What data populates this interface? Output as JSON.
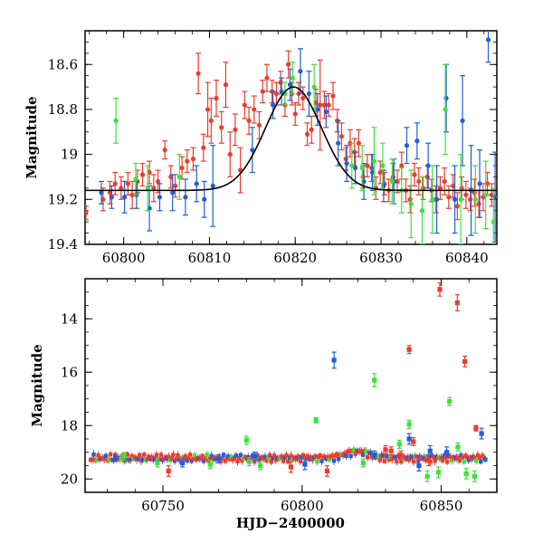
{
  "chart_data": [
    {
      "type": "scatter",
      "title": "",
      "xlabel": "",
      "ylabel": "Magnitude",
      "xlim": [
        60795.5,
        60843.5
      ],
      "ylim": [
        19.4,
        18.45
      ],
      "y_inverted": true,
      "x_ticks": [
        60800,
        60810,
        60820,
        60830,
        60840
      ],
      "x_tick_labels": [
        "60800",
        "60810",
        "60820",
        "60830",
        "60840"
      ],
      "y_ticks": [
        18.6,
        18.8,
        19,
        19.2,
        19.4
      ],
      "y_tick_labels": [
        "18.6",
        "18.8",
        "19",
        "19.2",
        "19.4"
      ],
      "grid": false,
      "legend": "none",
      "colors": {
        "red": "#ef3b2c",
        "blue": "#1f5fd8",
        "green": "#3ee03e",
        "model": "#000000"
      },
      "model_curve": {
        "type": "gaussian-bump",
        "baseline": 19.16,
        "peak": 18.7,
        "t_peak": 60819.8,
        "width": 4.6
      },
      "series": [
        {
          "color": "red",
          "points": [
            [
              60795.6,
              19.26,
              0.03
            ],
            [
              60797.6,
              19.2,
              0.05
            ],
            [
              60798.4,
              19.17,
              0.05
            ],
            [
              60799.0,
              19.13,
              0.05
            ],
            [
              60799.7,
              19.15,
              0.05
            ],
            [
              60800.5,
              19.13,
              0.05
            ],
            [
              60801.0,
              19.18,
              0.06
            ],
            [
              60801.6,
              19.12,
              0.05
            ],
            [
              60802.2,
              19.09,
              0.05
            ],
            [
              60803.0,
              19.08,
              0.05
            ],
            [
              60803.5,
              19.15,
              0.06
            ],
            [
              60804.0,
              19.12,
              0.05
            ],
            [
              60804.8,
              18.98,
              0.04
            ],
            [
              60805.5,
              19.1,
              0.05
            ],
            [
              60806.0,
              19.14,
              0.05
            ],
            [
              60806.8,
              19.06,
              0.05
            ],
            [
              60807.4,
              19.03,
              0.05
            ],
            [
              60808.1,
              19.02,
              0.05
            ],
            [
              60808.7,
              18.64,
              0.09
            ],
            [
              60809.3,
              18.97,
              0.06
            ],
            [
              60809.8,
              18.8,
              0.12
            ],
            [
              60810.2,
              18.85,
              0.1
            ],
            [
              60810.8,
              18.75,
              0.08
            ],
            [
              60811.4,
              18.88,
              0.07
            ],
            [
              60811.9,
              18.69,
              0.1
            ],
            [
              60812.4,
              19.0,
              0.1
            ],
            [
              60813.0,
              18.89,
              0.07
            ],
            [
              60813.6,
              19.07,
              0.1
            ],
            [
              60814.1,
              18.78,
              0.06
            ],
            [
              60814.6,
              18.85,
              0.06
            ],
            [
              60815.2,
              18.8,
              0.06
            ],
            [
              60815.8,
              18.87,
              0.06
            ],
            [
              60816.2,
              18.72,
              0.05
            ],
            [
              60816.7,
              18.66,
              0.06
            ],
            [
              60817.3,
              18.72,
              0.05
            ],
            [
              60817.8,
              18.73,
              0.05
            ],
            [
              60818.3,
              18.68,
              0.05
            ],
            [
              60818.8,
              18.78,
              0.05
            ],
            [
              60819.2,
              18.6,
              0.06
            ],
            [
              60819.6,
              18.73,
              0.05
            ],
            [
              60820.0,
              18.82,
              0.05
            ],
            [
              60820.4,
              18.73,
              0.05
            ],
            [
              60820.9,
              18.75,
              0.05
            ],
            [
              60821.4,
              18.91,
              0.05
            ],
            [
              60821.9,
              18.89,
              0.06
            ],
            [
              60822.4,
              18.77,
              0.06
            ],
            [
              60822.9,
              18.78,
              0.2
            ],
            [
              60823.4,
              18.78,
              0.06
            ],
            [
              60823.9,
              18.78,
              0.05
            ],
            [
              60824.4,
              18.74,
              0.06
            ],
            [
              60824.9,
              18.85,
              0.05
            ],
            [
              60825.4,
              18.92,
              0.06
            ],
            [
              60825.9,
              19.02,
              0.05
            ],
            [
              60826.4,
              18.95,
              0.06
            ],
            [
              60826.9,
              18.99,
              0.06
            ],
            [
              60827.4,
              18.95,
              0.06
            ],
            [
              60827.9,
              19.1,
              0.05
            ],
            [
              60828.4,
              19.05,
              0.05
            ],
            [
              60828.9,
              19.06,
              0.06
            ],
            [
              60829.4,
              19.15,
              0.05
            ],
            [
              60829.9,
              19.08,
              0.05
            ],
            [
              60830.4,
              19.13,
              0.05
            ],
            [
              60830.9,
              19.16,
              0.05
            ],
            [
              60831.4,
              19.1,
              0.06
            ],
            [
              60831.9,
              19.12,
              0.05
            ],
            [
              60832.4,
              19.05,
              0.06
            ],
            [
              60832.9,
              19.16,
              0.05
            ],
            [
              60833.4,
              19.2,
              0.06
            ],
            [
              60833.9,
              19.09,
              0.05
            ],
            [
              60834.4,
              19.12,
              0.06
            ],
            [
              60834.9,
              19.15,
              0.05
            ],
            [
              60835.4,
              19.1,
              0.05
            ],
            [
              60835.9,
              19.16,
              0.05
            ],
            [
              60836.4,
              19.2,
              0.06
            ],
            [
              60836.9,
              19.15,
              0.05
            ],
            [
              60837.4,
              19.12,
              0.06
            ],
            [
              60837.9,
              19.19,
              0.05
            ],
            [
              60838.4,
              19.14,
              0.05
            ],
            [
              60838.9,
              19.23,
              0.06
            ],
            [
              60839.4,
              19.15,
              0.05
            ],
            [
              60839.9,
              19.18,
              0.06
            ],
            [
              60840.4,
              19.2,
              0.05
            ],
            [
              60840.9,
              19.17,
              0.06
            ],
            [
              60841.4,
              19.22,
              0.06
            ],
            [
              60841.9,
              19.19,
              0.06
            ],
            [
              60842.4,
              19.13,
              0.05
            ],
            [
              60842.9,
              19.18,
              0.05
            ]
          ]
        },
        {
          "color": "blue",
          "points": [
            [
              60797.4,
              19.17,
              0.05
            ],
            [
              60798.6,
              19.19,
              0.05
            ],
            [
              60800.1,
              19.19,
              0.07
            ],
            [
              60801.5,
              19.18,
              0.06
            ],
            [
              60803.0,
              19.24,
              0.1
            ],
            [
              60804.2,
              19.19,
              0.06
            ],
            [
              60805.7,
              19.17,
              0.08
            ],
            [
              60807.2,
              19.19,
              0.08
            ],
            [
              60808.5,
              19.13,
              0.08
            ],
            [
              60809.4,
              19.2,
              0.08
            ],
            [
              60810.4,
              19.14,
              0.18
            ],
            [
              60815.0,
              18.98,
              0.1
            ],
            [
              60817.4,
              18.78,
              0.06
            ],
            [
              60818.4,
              18.72,
              0.06
            ],
            [
              60819.4,
              18.69,
              0.07
            ],
            [
              60820.6,
              18.63,
              0.1
            ],
            [
              60821.6,
              18.73,
              0.1
            ],
            [
              60822.6,
              18.8,
              0.07
            ],
            [
              60823.6,
              18.81,
              0.07
            ],
            [
              60825.0,
              18.95,
              0.1
            ],
            [
              60826.0,
              19.04,
              0.08
            ],
            [
              60827.0,
              19.06,
              0.07
            ],
            [
              60828.0,
              19.12,
              0.08
            ],
            [
              60829.0,
              19.08,
              0.08
            ],
            [
              60830.3,
              19.14,
              0.07
            ],
            [
              60831.5,
              19.12,
              0.1
            ],
            [
              60833.0,
              18.96,
              0.08
            ],
            [
              60834.2,
              18.94,
              0.08
            ],
            [
              60835.5,
              19.05,
              0.1
            ],
            [
              60836.5,
              19.2,
              0.15
            ],
            [
              60837.6,
              18.75,
              0.15
            ],
            [
              60838.6,
              19.2,
              0.15
            ],
            [
              60839.5,
              18.85,
              0.2
            ],
            [
              60840.5,
              19.16,
              0.2
            ],
            [
              60841.5,
              19.13,
              0.15
            ],
            [
              60842.5,
              18.49,
              0.1
            ],
            [
              60843.3,
              19.19,
              0.2
            ]
          ]
        },
        {
          "color": "green",
          "points": [
            [
              60799.1,
              18.85,
              0.1
            ],
            [
              60801.4,
              19.11,
              0.07
            ],
            [
              60802.8,
              19.15,
              0.1
            ],
            [
              60806.5,
              19.1,
              0.1
            ],
            [
              60818.8,
              18.73,
              0.05
            ],
            [
              60819.7,
              18.66,
              0.07
            ],
            [
              60822.2,
              18.7,
              0.1
            ],
            [
              60826.6,
              19.05,
              0.1
            ],
            [
              60827.8,
              19.06,
              0.1
            ],
            [
              60829.2,
              19.03,
              0.15
            ],
            [
              60830.2,
              19.05,
              0.1
            ],
            [
              60831.3,
              19.12,
              0.1
            ],
            [
              60832.4,
              19.16,
              0.1
            ],
            [
              60833.5,
              19.22,
              0.15
            ],
            [
              60834.8,
              19.25,
              0.15
            ],
            [
              60836.0,
              19.2,
              0.15
            ],
            [
              60837.5,
              18.8,
              0.2
            ],
            [
              60839.3,
              19.2,
              0.2
            ],
            [
              60841.0,
              19.2,
              0.15
            ],
            [
              60842.2,
              19.18,
              0.15
            ],
            [
              60843.1,
              19.3,
              0.15
            ]
          ]
        }
      ]
    },
    {
      "type": "scatter",
      "title": "",
      "xlabel": "HJD−2400000",
      "ylabel": "Magnitude",
      "xlim": [
        60722,
        60870
      ],
      "ylim": [
        20.5,
        12.5
      ],
      "y_inverted": true,
      "x_ticks": [
        60750,
        60800,
        60850
      ],
      "x_tick_labels": [
        "60750",
        "60800",
        "60850"
      ],
      "y_ticks": [
        14,
        16,
        18,
        20
      ],
      "y_tick_labels": [
        "14",
        "16",
        "18",
        "20"
      ],
      "grid": false,
      "legend": "none",
      "colors": {
        "red": "#ef3b2c",
        "blue": "#1f5fd8",
        "green": "#3ee03e"
      },
      "baseline": {
        "mag": 19.22,
        "x_start": 60724,
        "x_end": 60866
      },
      "series": [
        {
          "color": "red",
          "points": [
            [
              60849.5,
              12.9,
              0.25
            ],
            [
              60855.8,
              13.4,
              0.3
            ],
            [
              60838.5,
              15.15,
              0.15
            ],
            [
              60858.5,
              15.6,
              0.2
            ],
            [
              60862.5,
              18.1,
              0.1
            ],
            [
              60832.0,
              18.95,
              0.15
            ],
            [
              60840.0,
              18.6,
              0.15
            ],
            [
              60752.0,
              19.7,
              0.2
            ],
            [
              60796.0,
              19.55,
              0.2
            ],
            [
              60809.0,
              19.7,
              0.2
            ],
            [
              60830.0,
              18.9,
              0.15
            ],
            [
              60835.5,
              19.1,
              0.15
            ],
            [
              60845.5,
              19.3,
              0.2
            ]
          ]
        },
        {
          "color": "blue",
          "points": [
            [
              60811.5,
              15.55,
              0.3
            ],
            [
              60864.5,
              18.3,
              0.2
            ],
            [
              60838.5,
              18.5,
              0.2
            ],
            [
              60846.0,
              18.95,
              0.2
            ],
            [
              60733.0,
              19.2,
              0.15
            ],
            [
              60757.0,
              19.4,
              0.15
            ],
            [
              60770.0,
              19.25,
              0.15
            ],
            [
              60783.0,
              19.15,
              0.15
            ],
            [
              60801.0,
              19.45,
              0.2
            ],
            [
              60826.0,
              19.1,
              0.15
            ],
            [
              60842.0,
              19.5,
              0.2
            ],
            [
              60852.0,
              19.0,
              0.2
            ]
          ]
        },
        {
          "color": "green",
          "points": [
            [
              60826.0,
              16.3,
              0.25
            ],
            [
              60853.0,
              17.1,
              0.15
            ],
            [
              60805.0,
              17.8,
              0.1
            ],
            [
              60838.5,
              17.95,
              0.15
            ],
            [
              60780.0,
              18.55,
              0.15
            ],
            [
              60835.0,
              18.7,
              0.15
            ],
            [
              60856.0,
              18.8,
              0.15
            ],
            [
              60736.0,
              19.15,
              0.15
            ],
            [
              60748.0,
              19.4,
              0.15
            ],
            [
              60767.0,
              19.45,
              0.15
            ],
            [
              60781.0,
              19.35,
              0.15
            ],
            [
              60785.0,
              19.5,
              0.15
            ],
            [
              60822.0,
              19.4,
              0.15
            ],
            [
              60845.0,
              19.9,
              0.2
            ],
            [
              60849.0,
              19.75,
              0.2
            ],
            [
              60859.0,
              19.8,
              0.2
            ],
            [
              60862.0,
              19.9,
              0.2
            ]
          ]
        }
      ]
    }
  ]
}
